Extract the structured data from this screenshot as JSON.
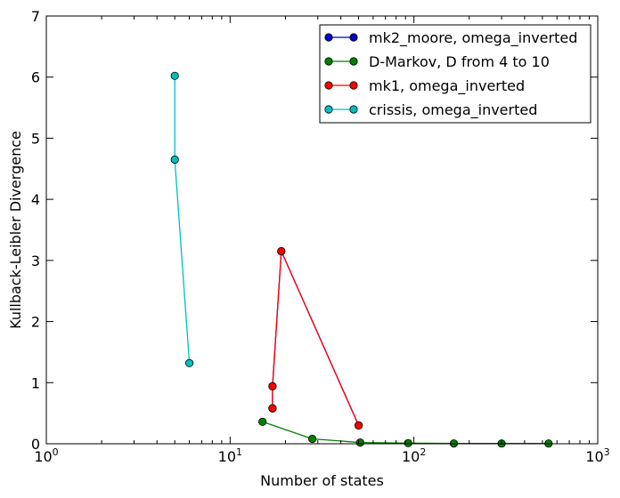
{
  "chart_data": {
    "type": "line",
    "title": "",
    "xlabel": "Number of states",
    "ylabel": "Kullback-Leibler Divergence",
    "xscale": "log",
    "xlim": [
      1,
      1000
    ],
    "ylim": [
      0,
      7
    ],
    "x_ticks": [
      {
        "value": 1,
        "base": "10",
        "exp": "0"
      },
      {
        "value": 10,
        "base": "10",
        "exp": "1"
      },
      {
        "value": 100,
        "base": "10",
        "exp": "2"
      },
      {
        "value": 1000,
        "base": "10",
        "exp": "3"
      }
    ],
    "y_ticks": [
      0,
      1,
      2,
      3,
      4,
      5,
      6,
      7
    ],
    "grid": false,
    "legend": "top-right",
    "series": [
      {
        "name": "mk2_moore, omega_inverted",
        "color": "#0000cc",
        "x": [
          17,
          17,
          19,
          50
        ],
        "y": [
          0.58,
          0.94,
          3.15,
          0.3
        ]
      },
      {
        "name": "D-Markov, D from 4 to 10",
        "color": "#008000",
        "x": [
          15,
          28,
          51,
          93,
          165,
          300,
          540
        ],
        "y": [
          0.36,
          0.08,
          0.02,
          0.01,
          0.005,
          0.005,
          0.005
        ]
      },
      {
        "name": "mk1, omega_inverted",
        "color": "#ff0000",
        "x": [
          17,
          17,
          19,
          50
        ],
        "y": [
          0.58,
          0.94,
          3.15,
          0.3
        ]
      },
      {
        "name": "crissis, omega_inverted",
        "color": "#00bfbf",
        "x": [
          5,
          5,
          6
        ],
        "y": [
          6.02,
          4.65,
          1.32
        ]
      }
    ]
  }
}
